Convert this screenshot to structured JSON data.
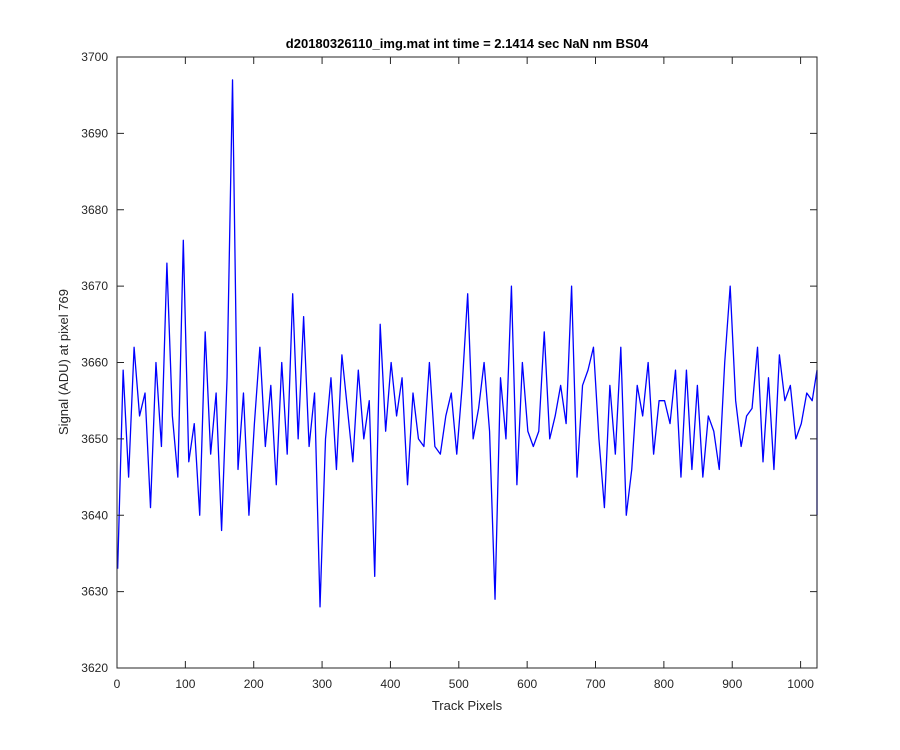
{
  "chart_data": {
    "type": "line",
    "title": "d20180326110_img.mat int time = 2.1414 sec  NaN nm BS04",
    "xlabel": "Track Pixels",
    "ylabel": "Signal (ADU) at pixel 769",
    "xlim": [
      0,
      1024
    ],
    "ylim": [
      3620,
      3700
    ],
    "xticks": [
      0,
      100,
      200,
      300,
      400,
      500,
      600,
      700,
      800,
      900,
      1000
    ],
    "yticks": [
      3620,
      3630,
      3640,
      3650,
      3660,
      3670,
      3680,
      3690,
      3700
    ],
    "grid": false,
    "legend": "none",
    "line_color": "#0000ff",
    "series": [
      {
        "x_start": 1,
        "x_step": 8,
        "values": [
          3633,
          3659,
          3645,
          3662,
          3653,
          3656,
          3641,
          3660,
          3649,
          3673,
          3653,
          3645,
          3676,
          3647,
          3652,
          3640,
          3664,
          3648,
          3656,
          3638,
          3658,
          3697,
          3646,
          3656,
          3640,
          3652,
          3662,
          3649,
          3657,
          3644,
          3660,
          3648,
          3669,
          3650,
          3666,
          3649,
          3656,
          3628,
          3650,
          3658,
          3646,
          3661,
          3654,
          3647,
          3659,
          3650,
          3655,
          3632,
          3665,
          3651,
          3660,
          3653,
          3658,
          3644,
          3656,
          3650,
          3649,
          3660,
          3649,
          3648,
          3653,
          3656,
          3648,
          3657,
          3669,
          3650,
          3654,
          3660,
          3651,
          3629,
          3658,
          3650,
          3670,
          3644,
          3660,
          3651,
          3649,
          3651,
          3664,
          3650,
          3653,
          3657,
          3652,
          3670,
          3645,
          3657,
          3659,
          3662,
          3650,
          3641,
          3657,
          3648,
          3662,
          3640,
          3646,
          3657,
          3653,
          3660,
          3648,
          3655,
          3655,
          3652,
          3659,
          3645,
          3659,
          3646,
          3657,
          3645,
          3653,
          3651,
          3646,
          3660,
          3670,
          3655,
          3649,
          3653,
          3654,
          3662,
          3647,
          3658,
          3646,
          3661,
          3655,
          3657,
          3650,
          3652,
          3656,
          3655,
          3659,
          3640
        ]
      }
    ]
  }
}
